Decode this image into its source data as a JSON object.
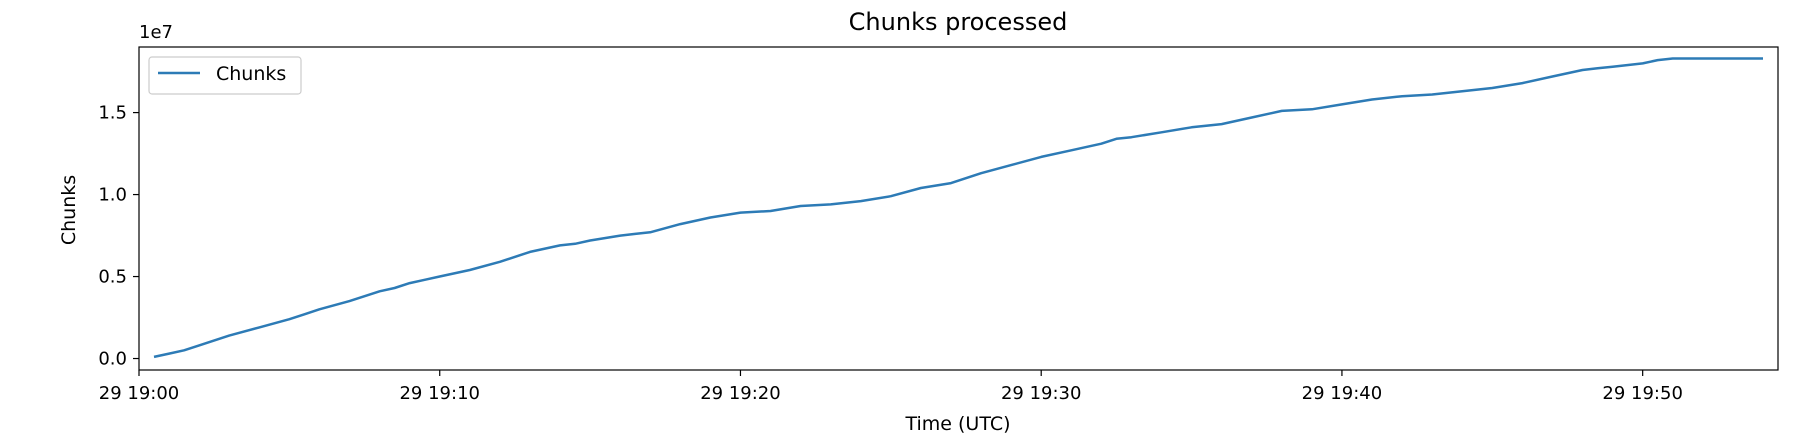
{
  "chart_data": {
    "type": "line",
    "title": "Chunks processed",
    "xlabel": "Time (UTC)",
    "ylabel": "Chunks",
    "y_scale_label": "1e7",
    "grid": false,
    "legend_position": "upper-left",
    "xlim": [
      "29 19:00",
      "29 19:54:30"
    ],
    "x_ticks": [
      "29 19:00",
      "29 19:10",
      "29 19:20",
      "29 19:30",
      "29 19:40",
      "29 19:50"
    ],
    "ylim": [
      -0.07,
      1.9
    ],
    "y_ticks": [
      "0.0",
      "0.5",
      "1.0",
      "1.5"
    ],
    "colors": {
      "line": "#2d7bb6",
      "axes": "#000000"
    },
    "series": [
      {
        "name": "Chunks",
        "x": [
          "29 19:00:30",
          "29 19:01",
          "29 19:01:30",
          "29 19:02",
          "29 19:03",
          "29 19:04",
          "29 19:05",
          "29 19:05:30",
          "29 19:06",
          "29 19:07",
          "29 19:08",
          "29 19:08:30",
          "29 19:09",
          "29 19:09:30",
          "29 19:10",
          "29 19:11",
          "29 19:12",
          "29 19:13",
          "29 19:14",
          "29 19:14:30",
          "29 19:15",
          "29 19:16",
          "29 19:16:30",
          "29 19:17",
          "29 19:18",
          "29 19:19",
          "29 19:20",
          "29 19:21",
          "29 19:22",
          "29 19:23",
          "29 19:24",
          "29 19:25",
          "29 19:26",
          "29 19:27",
          "29 19:28",
          "29 19:29",
          "29 19:30",
          "29 19:31",
          "29 19:32",
          "29 19:32:30",
          "29 19:33",
          "29 19:34",
          "29 19:35",
          "29 19:36",
          "29 19:37",
          "29 19:38",
          "29 19:39",
          "29 19:40",
          "29 19:41",
          "29 19:42",
          "29 19:43",
          "29 19:43:30",
          "29 19:44",
          "29 19:45",
          "29 19:46",
          "29 19:47",
          "29 19:48",
          "29 19:48:30",
          "29 19:49",
          "29 19:50",
          "29 19:50:30",
          "29 19:51",
          "29 19:52",
          "29 19:53",
          "29 19:54"
        ],
        "y": [
          0.01,
          0.03,
          0.05,
          0.08,
          0.14,
          0.19,
          0.24,
          0.27,
          0.3,
          0.35,
          0.41,
          0.43,
          0.46,
          0.48,
          0.5,
          0.54,
          0.59,
          0.65,
          0.69,
          0.7,
          0.72,
          0.75,
          0.76,
          0.77,
          0.82,
          0.86,
          0.89,
          0.9,
          0.93,
          0.94,
          0.96,
          0.99,
          1.04,
          1.07,
          1.13,
          1.18,
          1.23,
          1.27,
          1.31,
          1.34,
          1.35,
          1.38,
          1.41,
          1.43,
          1.47,
          1.51,
          1.52,
          1.55,
          1.58,
          1.6,
          1.61,
          1.62,
          1.63,
          1.65,
          1.68,
          1.72,
          1.76,
          1.77,
          1.78,
          1.8,
          1.82,
          1.83,
          1.83,
          1.83,
          1.83
        ]
      }
    ]
  }
}
